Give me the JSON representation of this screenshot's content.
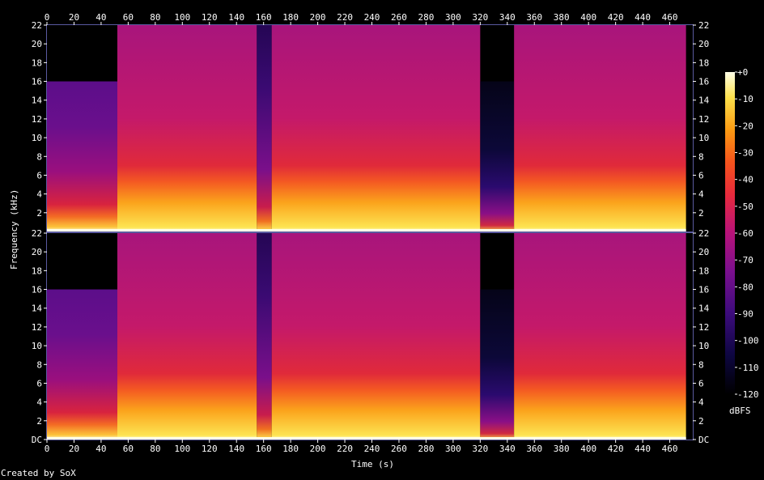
{
  "chart_data": {
    "type": "heatmap",
    "xlabel": "Time (s)",
    "ylabel": "Frequency (kHz)",
    "xlim": [
      0,
      477
    ],
    "ylim": [
      0,
      22
    ],
    "x_ticks": [
      "0",
      "20",
      "40",
      "60",
      "80",
      "100",
      "120",
      "140",
      "160",
      "180",
      "200",
      "220",
      "240",
      "260",
      "280",
      "300",
      "320",
      "340",
      "360",
      "380",
      "400",
      "420",
      "440",
      "460"
    ],
    "y_ticks_left": [
      "DC",
      "2",
      "4",
      "6",
      "8",
      "10",
      "12",
      "14",
      "16",
      "18",
      "20",
      "22"
    ],
    "y_ticks_right": [
      "DC",
      "2",
      "4",
      "6",
      "8",
      "10",
      "12",
      "14",
      "16",
      "18",
      "20",
      "22"
    ],
    "channels": 2,
    "colorbar": {
      "unit": "dBFS",
      "range": [
        -120,
        0
      ],
      "tick_labels": [
        "+0",
        "-10",
        "-20",
        "-30",
        "-40",
        "-50",
        "-60",
        "-70",
        "-80",
        "-90",
        "-100",
        "-110",
        "-120"
      ]
    },
    "segments": [
      {
        "start": 0,
        "end": 52,
        "cutoff_khz": 16,
        "level": "medium"
      },
      {
        "start": 52,
        "end": 155,
        "cutoff_khz": 22,
        "level": "high"
      },
      {
        "start": 155,
        "end": 166,
        "cutoff_khz": 22,
        "level": "low"
      },
      {
        "start": 166,
        "end": 320,
        "cutoff_khz": 22,
        "level": "high"
      },
      {
        "start": 320,
        "end": 345,
        "cutoff_khz": 16,
        "level": "quiet"
      },
      {
        "start": 345,
        "end": 472,
        "cutoff_khz": 22,
        "level": "high"
      }
    ]
  },
  "credit": "Created by SoX"
}
